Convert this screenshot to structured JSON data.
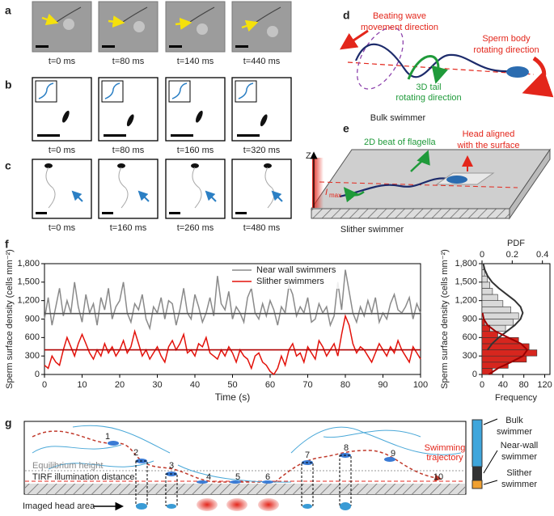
{
  "panel_a": {
    "label": "a",
    "times": [
      "t=0 ms",
      "t=80 ms",
      "t=140 ms",
      "t=440 ms"
    ]
  },
  "panel_b": {
    "label": "b",
    "times": [
      "t=0 ms",
      "t=80 ms",
      "t=160 ms",
      "t=320 ms"
    ]
  },
  "panel_c": {
    "label": "c",
    "times": [
      "t=0 ms",
      "t=160 ms",
      "t=260 ms",
      "t=480 ms"
    ]
  },
  "panel_d": {
    "label": "d",
    "wave": [
      "Beating wave",
      "movement direction"
    ],
    "body": [
      "Sperm body",
      "rotating direction"
    ],
    "tail": [
      "3D tail",
      "rotating direction"
    ]
  },
  "panel_e": {
    "label": "e",
    "bulk": "Bulk swimmer",
    "beat": "2D beat of flagella",
    "head": [
      "Head aligned",
      "with the surface"
    ],
    "z": "Z",
    "imax": "I",
    "imax_sub": "max",
    "slither": "Slither swimmer"
  },
  "panel_f": {
    "label": "f"
  },
  "panel_g": {
    "label": "g",
    "steps": [
      "1",
      "2",
      "3",
      "4",
      "5",
      "6",
      "7",
      "8",
      "9",
      "10"
    ],
    "equilibrium": "Equilibrium height",
    "tirf": "TIRF illumination distance",
    "imaged": "Imaged head area",
    "trajectory": [
      "Swimming",
      "trajectory"
    ],
    "bulk": [
      "Bulk",
      "swimmer"
    ],
    "near": [
      "Near-wall",
      "swimmer"
    ],
    "slither": [
      "Slither",
      "swimmer"
    ]
  },
  "chart_data": [
    {
      "type": "line",
      "xlabel": "Time (s)",
      "ylabel": "Sperm surface density (cells mm⁻²)",
      "x": [
        0,
        1,
        2,
        3,
        4,
        5,
        6,
        7,
        8,
        9,
        10,
        11,
        12,
        13,
        14,
        15,
        16,
        17,
        18,
        19,
        20,
        21,
        22,
        23,
        24,
        25,
        26,
        27,
        28,
        29,
        30,
        31,
        32,
        33,
        34,
        35,
        36,
        37,
        38,
        39,
        40,
        41,
        42,
        43,
        44,
        45,
        46,
        47,
        48,
        49,
        50,
        51,
        52,
        53,
        54,
        55,
        56,
        57,
        58,
        59,
        60,
        61,
        62,
        63,
        64,
        65,
        66,
        67,
        68,
        69,
        70,
        71,
        72,
        73,
        74,
        75,
        76,
        77,
        78,
        79,
        80,
        81,
        82,
        83,
        84,
        85,
        86,
        87,
        88,
        89,
        90,
        91,
        92,
        93,
        94,
        95,
        96,
        97,
        98,
        99,
        100
      ],
      "series": [
        {
          "name": "Near wall swimmers",
          "color": "#8a8a8a",
          "mean": 990,
          "mean_color": "#555555",
          "values": [
            900,
            1250,
            800,
            1100,
            1400,
            950,
            1200,
            1000,
            1500,
            1100,
            850,
            1300,
            1000,
            1150,
            800,
            1250,
            1050,
            1400,
            900,
            1100,
            1200,
            1500,
            1000,
            850,
            1150,
            1050,
            1300,
            900,
            750,
            1100,
            1000,
            1250,
            900,
            1200,
            1150,
            800,
            1050,
            1400,
            1000,
            900,
            1300,
            1100,
            850,
            1000,
            1250,
            950,
            1600,
            1150,
            1050,
            1350,
            900,
            1100,
            1000,
            850,
            1250,
            1400,
            1000,
            900,
            1150,
            950,
            1200,
            1050,
            800,
            1100,
            1000,
            1450,
            1300,
            950,
            1100,
            1000,
            1250,
            850,
            900,
            1150,
            1000,
            1100,
            800,
            950,
            1500,
            1050,
            1700,
            1350,
            1000,
            850,
            1100,
            950,
            1200,
            1000,
            1250,
            850,
            1000,
            900,
            1150,
            1300,
            1050,
            1000,
            1100,
            1250,
            900,
            1150,
            1000
          ]
        },
        {
          "name": "Slither swimmers",
          "color": "#e3120b",
          "mean": 400,
          "mean_color": "#b00000",
          "values": [
            150,
            100,
            300,
            200,
            150,
            400,
            600,
            450,
            300,
            500,
            650,
            500,
            350,
            250,
            400,
            300,
            500,
            350,
            450,
            300,
            400,
            550,
            350,
            450,
            700,
            500,
            300,
            400,
            250,
            350,
            450,
            300,
            200,
            450,
            550,
            400,
            500,
            650,
            350,
            400,
            300,
            500,
            450,
            600,
            350,
            300,
            250,
            400,
            300,
            450,
            350,
            200,
            400,
            300,
            250,
            100,
            300,
            350,
            200,
            150,
            50,
            0,
            100,
            300,
            150,
            400,
            500,
            300,
            350,
            200,
            450,
            350,
            250,
            550,
            450,
            300,
            400,
            500,
            300,
            650,
            950,
            800,
            500,
            350,
            450,
            400,
            300,
            200,
            350,
            500,
            400,
            300,
            450,
            350,
            550,
            400,
            300,
            200,
            450,
            350,
            250
          ]
        }
      ],
      "xlim": [
        0,
        100
      ],
      "xticks": [
        0,
        10,
        20,
        30,
        40,
        50,
        60,
        70,
        80,
        90,
        100
      ],
      "ylim": [
        0,
        1800
      ],
      "yticks": [
        0,
        300,
        600,
        900,
        {
          "value": 1200,
          "label": "1,200"
        },
        {
          "value": 1500,
          "label": "1,500"
        },
        {
          "value": 1800,
          "label": "1,800"
        }
      ]
    },
    {
      "type": "histogram",
      "ylabel": "Sperm surface density (cells mm⁻²)",
      "xlabel": "Frequency",
      "x2label": "PDF",
      "bins": [
        0,
        100,
        200,
        300,
        400,
        500,
        600,
        700,
        800,
        900,
        1000,
        1100,
        1200,
        1300,
        1400,
        1500,
        1600,
        1700,
        1800
      ],
      "series": [
        {
          "color": "#d9d9d9",
          "counts": [
            0,
            0,
            0,
            0,
            3,
            8,
            30,
            45,
            60,
            70,
            55,
            40,
            30,
            20,
            15,
            10,
            5,
            3
          ]
        },
        {
          "color": "#d7261e",
          "counts": [
            20,
            50,
            85,
            105,
            90,
            70,
            30,
            15,
            5,
            0,
            0,
            0,
            0,
            0,
            0,
            0,
            0,
            0
          ]
        }
      ],
      "fits": [
        {
          "color": "#333333",
          "y": [
            400,
            500,
            600,
            700,
            800,
            900,
            1000,
            1100,
            1200,
            1300,
            1400,
            1500,
            1600,
            1700,
            1800
          ],
          "pdf": [
            0.037,
            0.067,
            0.111,
            0.164,
            0.217,
            0.255,
            0.27,
            0.255,
            0.217,
            0.164,
            0.111,
            0.067,
            0.037,
            0.018,
            0.008
          ]
        },
        {
          "color": "#9b0000",
          "y": [
            0,
            100,
            200,
            300,
            400,
            500,
            600,
            700,
            800,
            900,
            1000
          ],
          "pdf": [
            0.045,
            0.105,
            0.191,
            0.271,
            0.3,
            0.258,
            0.173,
            0.09,
            0.037,
            0.012,
            0.003
          ]
        }
      ],
      "xlim": [
        0,
        130
      ],
      "xticks": [
        0,
        40,
        80,
        120
      ],
      "x2lim": [
        0,
        0.45
      ],
      "x2ticks": [
        0,
        0.2,
        0.4
      ],
      "ylim": [
        0,
        1800
      ],
      "yticks": [
        0,
        300,
        600,
        900,
        {
          "value": 1200,
          "label": "1,200"
        },
        {
          "value": 1500,
          "label": "1,500"
        },
        {
          "value": 1800,
          "label": "1,800"
        }
      ]
    }
  ]
}
